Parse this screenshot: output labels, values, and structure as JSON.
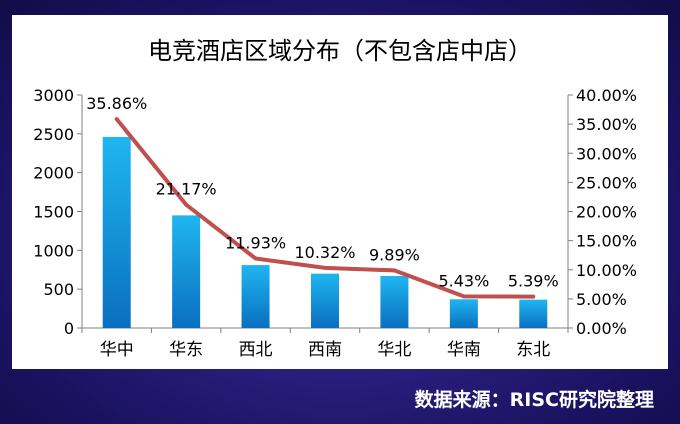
{
  "chart_data": {
    "type": "bar",
    "title": "电竞酒店区域分布（不包含店中店）",
    "categories": [
      "华中",
      "华东",
      "西北",
      "西南",
      "华北",
      "华南",
      "东北"
    ],
    "series": [
      {
        "type": "bar",
        "axis": "left",
        "values": [
          2460,
          1450,
          810,
          700,
          670,
          370,
          365
        ]
      },
      {
        "type": "line",
        "axis": "right",
        "values": [
          35.86,
          21.17,
          11.93,
          10.32,
          9.89,
          5.43,
          5.39
        ],
        "labels": [
          "35.86%",
          "21.17%",
          "11.93%",
          "10.32%",
          "9.89%",
          "5.43%",
          "5.39%"
        ]
      }
    ],
    "y_left": {
      "min": 0,
      "max": 3000,
      "ticks": [
        "3000",
        "2500",
        "2000",
        "1500",
        "1000",
        "500",
        "0"
      ]
    },
    "y_right": {
      "min": 0,
      "max": 40,
      "ticks": [
        "40.00%",
        "35.00%",
        "30.00%",
        "25.00%",
        "20.00%",
        "15.00%",
        "10.00%",
        "5.00%",
        "0.00%"
      ]
    },
    "grid": false,
    "colors": {
      "bar_top": "#1fb6f0",
      "bar_bottom": "#0a6fc0",
      "line": "#c0504d",
      "background": "#2a1f7f"
    }
  },
  "source_text": "数据来源：RISC研究院整理"
}
